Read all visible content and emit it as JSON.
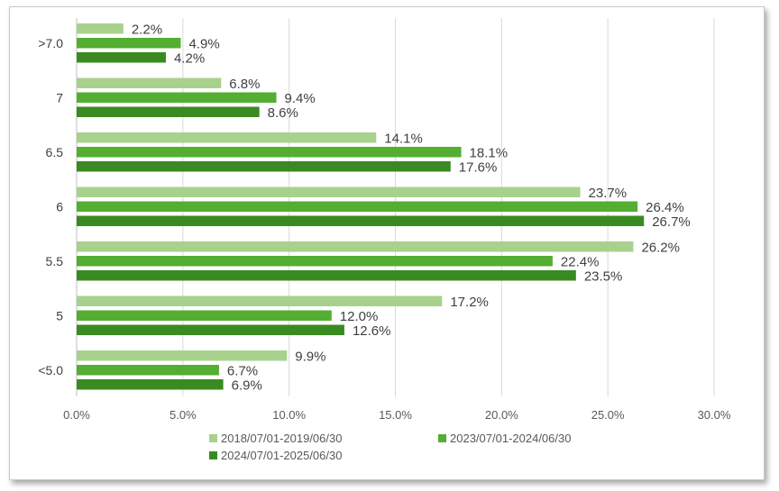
{
  "chart_data": {
    "type": "bar",
    "orientation": "horizontal",
    "title": "",
    "xlabel": "",
    "ylabel": "",
    "xlim": [
      0,
      30
    ],
    "x_ticks": [
      "0.0%",
      "5.0%",
      "10.0%",
      "15.0%",
      "20.0%",
      "25.0%",
      "30.0%"
    ],
    "categories": [
      ">7.0",
      "7",
      "6.5",
      "6",
      "5.5",
      "5",
      "<5.0"
    ],
    "series": [
      {
        "name": "2018/07/01-2019/06/30",
        "color": "#a9d18e",
        "values": [
          2.2,
          6.8,
          14.1,
          23.7,
          26.2,
          17.2,
          9.9
        ],
        "labels": [
          "2.2%",
          "6.8%",
          "14.1%",
          "23.7%",
          "26.2%",
          "17.2%",
          "9.9%"
        ]
      },
      {
        "name": "2023/07/01-2024/06/30",
        "color": "#53ae32",
        "values": [
          4.9,
          9.4,
          18.1,
          26.4,
          22.4,
          12.0,
          6.7
        ],
        "labels": [
          "4.9%",
          "9.4%",
          "18.1%",
          "26.4%",
          "22.4%",
          "12.0%",
          "6.7%"
        ]
      },
      {
        "name": "2024/07/01-2025/06/30",
        "color": "#3a8a22",
        "values": [
          4.2,
          8.6,
          17.6,
          26.7,
          23.5,
          12.6,
          6.9
        ],
        "labels": [
          "4.2%",
          "8.6%",
          "17.6%",
          "26.7%",
          "23.5%",
          "12.6%",
          "6.9%"
        ]
      }
    ],
    "grid": true,
    "legend_position": "bottom"
  }
}
